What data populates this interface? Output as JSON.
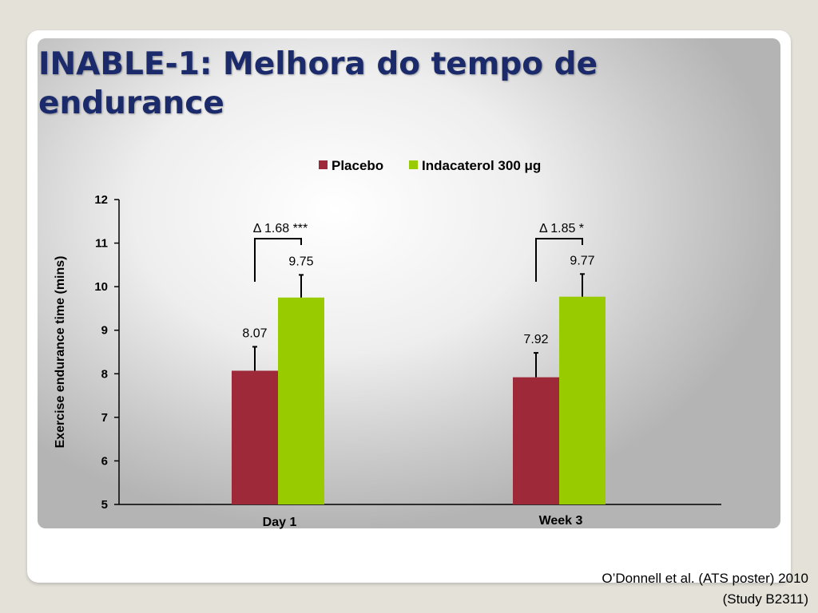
{
  "slide": {
    "title": "INABLE-1: Melhora do tempo de endurance",
    "citation_line1": "O’Donnell et al. (ATS poster) 2010",
    "citation_line2": "(Study B2311)"
  },
  "chart_data": {
    "type": "bar",
    "categories": [
      "Day 1",
      "Week 3"
    ],
    "series": [
      {
        "name": "Placebo",
        "color": "#9e2a39",
        "values": [
          8.07,
          7.92
        ],
        "labels": [
          "8.07",
          "7.92"
        ],
        "error_upper": [
          8.62,
          8.48
        ]
      },
      {
        "name": "Indacaterol 300 μg",
        "color": "#99cc00",
        "values": [
          9.75,
          9.77
        ],
        "labels": [
          "9.75",
          "9.77"
        ],
        "error_upper": [
          10.27,
          10.29
        ]
      }
    ],
    "ylabel": "Exercise endurance time (mins)",
    "xlabel": "",
    "ylim": [
      5,
      12
    ],
    "yticks": [
      5,
      6,
      7,
      8,
      9,
      10,
      11,
      12
    ],
    "annotations": [
      "Δ 1.68 ***",
      "Δ 1.85 *"
    ],
    "legend_position": "top",
    "grid": false
  }
}
